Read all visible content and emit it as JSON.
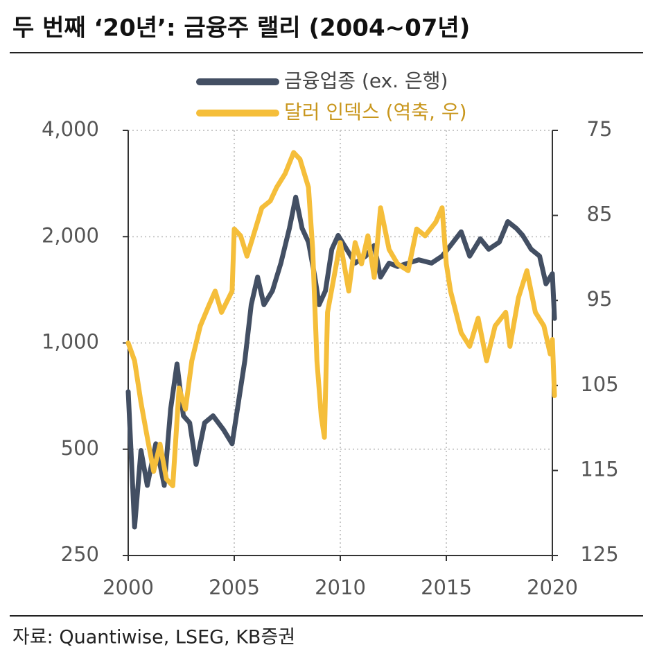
{
  "chart_data": {
    "type": "line",
    "title": "두 번째 ‘20년’: 금융주 랠리 (2004~07년)",
    "source": "자료: Quantiwise, LSEG, KB증권",
    "xlim": [
      2000,
      2020
    ],
    "xticks": [
      2000,
      2005,
      2010,
      2015,
      2020
    ],
    "ylim": [
      250,
      4000
    ],
    "yscale": "log",
    "yticks": [
      250,
      500,
      {
        "value": 1000,
        "label": "1,000"
      },
      {
        "value": 2000,
        "label": "2,000"
      },
      {
        "value": 4000,
        "label": "4,000"
      }
    ],
    "y2lim": [
      125,
      75
    ],
    "y2ticks": [
      75,
      85,
      95,
      105,
      115,
      125
    ],
    "grid": true,
    "legend": "top",
    "series": [
      {
        "name": "금융업종 (ex. 은행)",
        "color": "#434f63",
        "x": [
          2000.0,
          2000.3,
          2000.6,
          2000.9,
          2001.3,
          2001.7,
          2002.0,
          2002.3,
          2002.6,
          2002.9,
          2003.2,
          2003.6,
          2004.0,
          2004.5,
          2004.9,
          2005.2,
          2005.5,
          2005.8,
          2006.1,
          2006.4,
          2006.8,
          2007.2,
          2007.6,
          2007.9,
          2008.2,
          2008.5,
          2008.8,
          2009.0,
          2009.3,
          2009.6,
          2009.9,
          2010.3,
          2010.7,
          2011.2,
          2011.6,
          2011.9,
          2012.3,
          2012.7,
          2013.2,
          2013.7,
          2014.3,
          2014.8,
          2015.2,
          2015.7,
          2016.1,
          2016.6,
          2017.0,
          2017.5,
          2017.9,
          2018.3,
          2018.6,
          2019.0,
          2019.4,
          2019.7,
          2020.0,
          2020.1
        ],
        "values": [
          728,
          301,
          496,
          395,
          518,
          395,
          650,
          872,
          622,
          594,
          453,
          594,
          622,
          567,
          518,
          680,
          892,
          1283,
          1537,
          1283,
          1405,
          1683,
          2112,
          2588,
          2112,
          1930,
          1537,
          1283,
          1405,
          1842,
          2017,
          1842,
          1683,
          1762,
          1888,
          1537,
          1683,
          1646,
          1683,
          1720,
          1683,
          1762,
          1888,
          2065,
          1762,
          1973,
          1842,
          1930,
          2207,
          2112,
          2017,
          1842,
          1762,
          1470,
          1571,
          1173
        ]
      },
      {
        "name": "달러 인덱스 (역축, 우)",
        "color": "#f5be3a",
        "axis": "y2",
        "x": [
          2000.0,
          2000.3,
          2000.6,
          2000.9,
          2001.2,
          2001.5,
          2001.8,
          2002.1,
          2002.4,
          2002.7,
          2003.0,
          2003.4,
          2003.8,
          2004.1,
          2004.4,
          2004.9,
          2005.0,
          2005.3,
          2005.6,
          2005.9,
          2006.3,
          2006.7,
          2007.0,
          2007.4,
          2007.8,
          2008.1,
          2008.5,
          2008.7,
          2008.9,
          2009.1,
          2009.25,
          2009.4,
          2009.7,
          2010.0,
          2010.4,
          2010.7,
          2011.0,
          2011.3,
          2011.6,
          2011.9,
          2012.3,
          2012.7,
          2013.2,
          2013.6,
          2014.0,
          2014.5,
          2014.8,
          2015.0,
          2015.2,
          2015.7,
          2016.1,
          2016.5,
          2016.9,
          2017.3,
          2017.8,
          2018.0,
          2018.4,
          2018.8,
          2019.2,
          2019.6,
          2019.9,
          2020.0,
          2020.1
        ],
        "values": [
          100.0,
          102.1,
          107.0,
          111.1,
          115.1,
          111.9,
          116.0,
          116.8,
          105.3,
          107.8,
          102.1,
          98.0,
          95.6,
          93.9,
          96.4,
          93.9,
          86.6,
          87.4,
          89.8,
          87.4,
          84.1,
          83.3,
          81.7,
          80.1,
          77.6,
          78.4,
          81.7,
          89.0,
          102.1,
          108.6,
          111.1,
          96.4,
          92.3,
          88.2,
          93.9,
          88.2,
          90.7,
          87.4,
          92.3,
          84.1,
          89.0,
          90.7,
          91.5,
          86.6,
          87.4,
          85.8,
          84.1,
          90.7,
          93.9,
          98.8,
          100.4,
          97.1,
          102.1,
          98.0,
          96.4,
          100.4,
          94.7,
          91.5,
          96.4,
          98.0,
          101.3,
          99.6,
          106.2
        ]
      }
    ]
  }
}
